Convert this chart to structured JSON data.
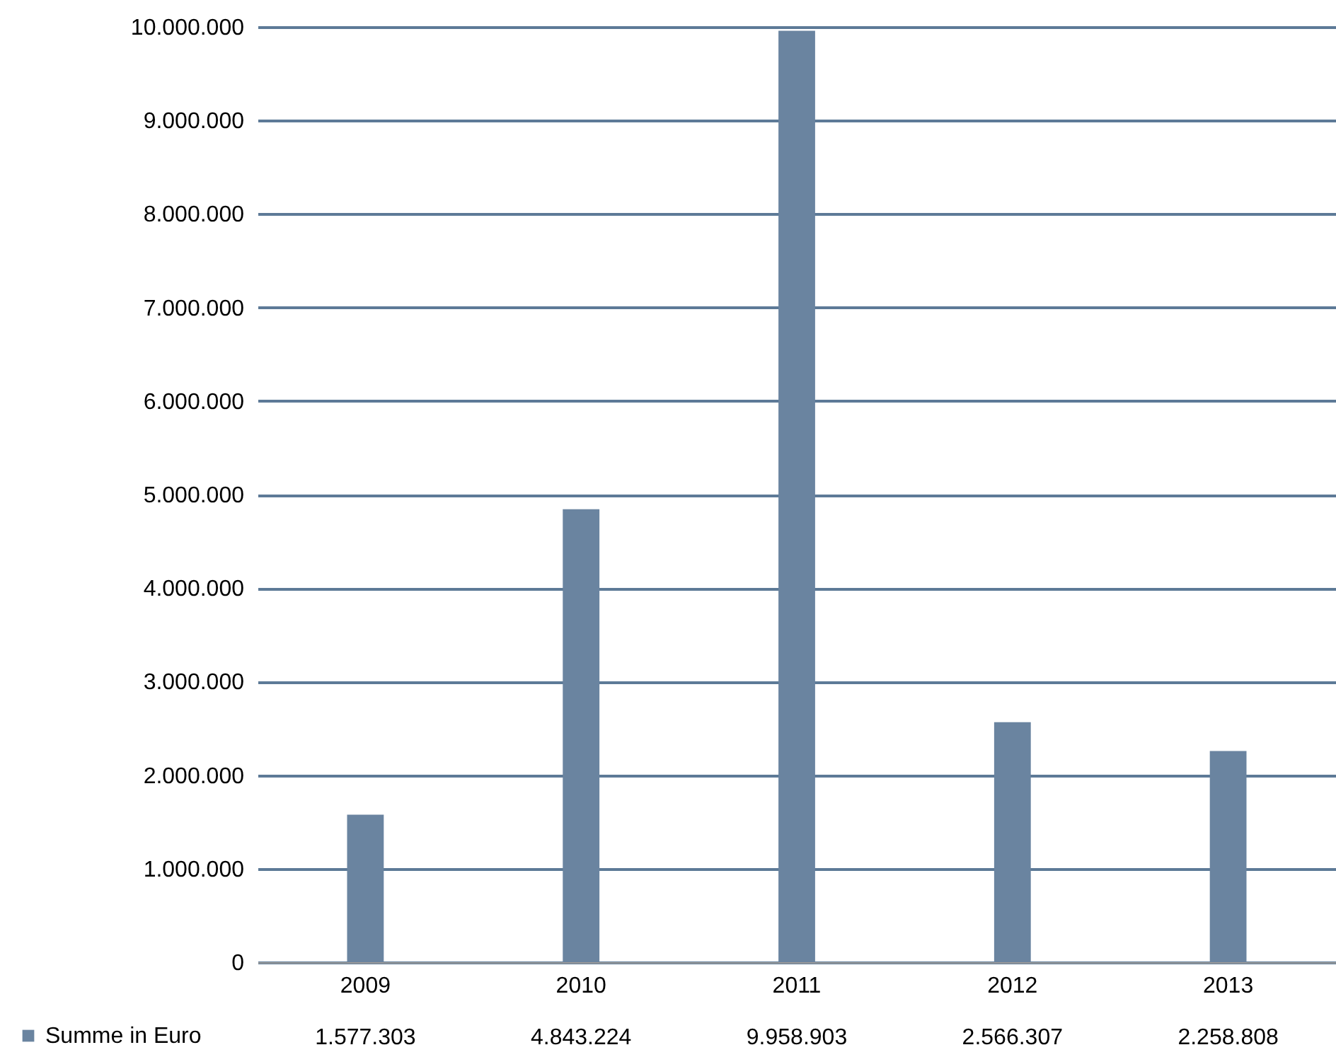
{
  "chart_data": {
    "type": "bar",
    "categories": [
      "2009",
      "2010",
      "2011",
      "2012",
      "2013"
    ],
    "series": [
      {
        "name": "Summe in Euro",
        "color": "#6a84a0",
        "values": [
          1577303,
          4843224,
          9958903,
          2566307,
          2258808
        ],
        "value_labels": [
          "1.577.303",
          "4.843.224",
          "9.958.903",
          "2.566.307",
          "2.258.808"
        ]
      }
    ],
    "ylim": [
      0,
      10000000
    ],
    "yticks": [
      0,
      {
        "value": 1000000,
        "label": "1.000.000"
      },
      {
        "value": 2000000,
        "label": "2.000.000"
      },
      {
        "value": 3000000,
        "label": "3.000.000"
      },
      {
        "value": 4000000,
        "label": "4.000.000"
      },
      {
        "value": 5000000,
        "label": "5.000.000"
      },
      {
        "value": 6000000,
        "label": "6.000.000"
      },
      {
        "value": 7000000,
        "label": "7.000.000"
      },
      {
        "value": 8000000,
        "label": "8.000.000"
      },
      {
        "value": 9000000,
        "label": "9.000.000"
      },
      {
        "value": 10000000,
        "label": "10.000.000"
      }
    ],
    "grid": "y",
    "legend": "bottom left"
  }
}
